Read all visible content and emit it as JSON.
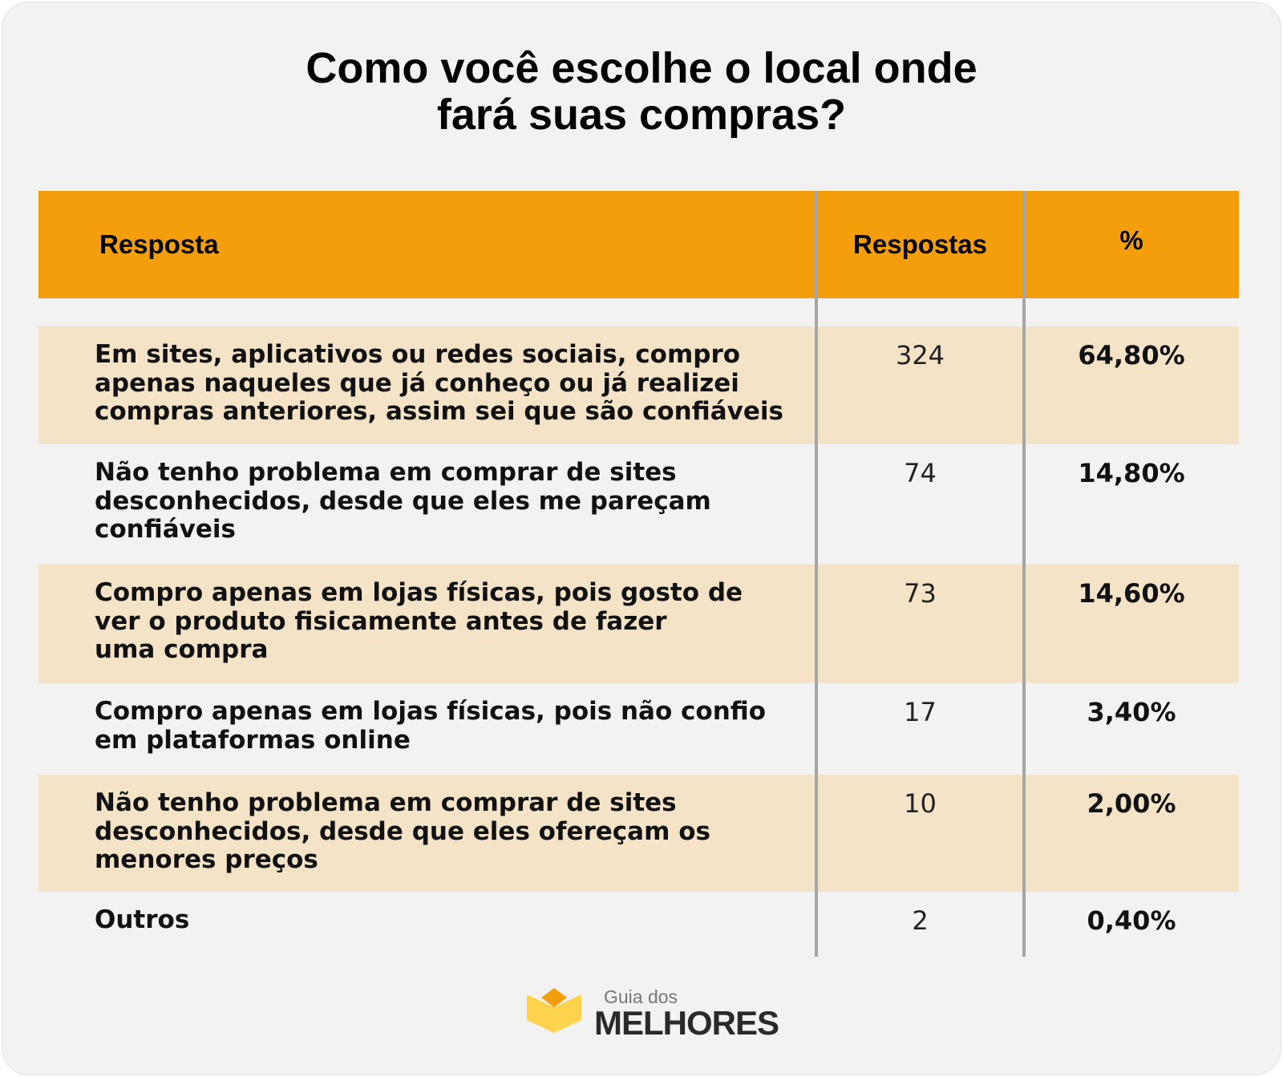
{
  "title": {
    "line1": "Como você escolhe o local onde",
    "line2": "fará suas compras?"
  },
  "table": {
    "headers": [
      "Resposta",
      "Respostas",
      "%"
    ],
    "rows": [
      {
        "lines": [
          "Em sites, aplicativos ou redes sociais, compro",
          "apenas naqueles que já conheço ou já realizei",
          "compras anteriores, assim sei que são confiáveis"
        ],
        "count": "324",
        "pct": "64,80%"
      },
      {
        "lines": [
          "Não tenho problema em comprar de sites",
          "desconhecidos, desde que eles me pareçam",
          "confiáveis"
        ],
        "count": "74",
        "pct": "14,80%"
      },
      {
        "lines": [
          "Compro apenas em lojas físicas, pois gosto de",
          "ver o produto fisicamente antes de fazer",
          "uma compra"
        ],
        "count": "73",
        "pct": "14,60%"
      },
      {
        "lines": [
          "Compro apenas em lojas físicas, pois não confio",
          "em plataformas online"
        ],
        "count": "17",
        "pct": "3,40%"
      },
      {
        "lines": [
          "Não tenho problema em comprar de sites",
          "desconhecidos, desde que eles ofereçam os",
          "menores preços"
        ],
        "count": "10",
        "pct": "2,00%"
      },
      {
        "lines": [
          "Outros"
        ],
        "count": "2",
        "pct": "0,40%"
      }
    ]
  },
  "logo": {
    "top": "Guia dos",
    "bottom": "MELHORES"
  },
  "colors": {
    "header": "#f59e0b",
    "alt_row": "#f4e3c7",
    "background": "#f2f2f2"
  }
}
